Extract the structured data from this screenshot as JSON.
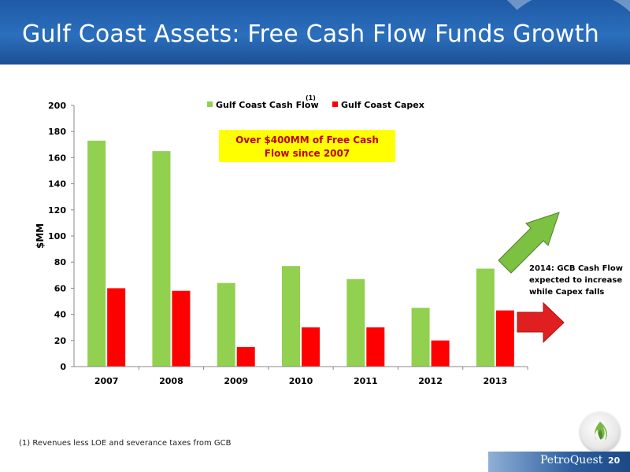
{
  "slide": {
    "title": "Gulf Coast Assets: Free Cash Flow Funds Growth",
    "footnote": "(1)   Revenues less  LOE and severance taxes from GCB",
    "callout": "2014: GCB Cash Flow expected to increase while Capex falls",
    "brand": "PetroQuest",
    "page_number": "20",
    "arrow_up_color": "#7cc142",
    "arrow_right_color": "#e02020"
  },
  "chart_data": {
    "type": "bar",
    "title": "",
    "xlabel": "",
    "ylabel": "$MM",
    "ylim": [
      0,
      200
    ],
    "yticks": [
      "0",
      "20",
      "40",
      "60",
      "80",
      "100",
      "120",
      "140",
      "160",
      "180",
      "200"
    ],
    "categories": [
      "2007",
      "2008",
      "2009",
      "2010",
      "2011",
      "2012",
      "2013"
    ],
    "series": [
      {
        "name": "Gulf Coast Cash Flow",
        "legend_label": "Gulf Coast Cash Flow",
        "legend_sup": "(1)",
        "color": "#92d050",
        "values": [
          173,
          165,
          64,
          77,
          67,
          45,
          75
        ]
      },
      {
        "name": "Gulf Coast Capex",
        "legend_label": "Gulf Coast Capex",
        "color": "#ff0000",
        "values": [
          60,
          58,
          15,
          30,
          30,
          20,
          43
        ]
      }
    ],
    "legend_position": "top",
    "annotation": {
      "text_line1": "Over $400MM of Free Cash",
      "text_line2": "Flow since 2007",
      "background": "#ffff00"
    }
  }
}
